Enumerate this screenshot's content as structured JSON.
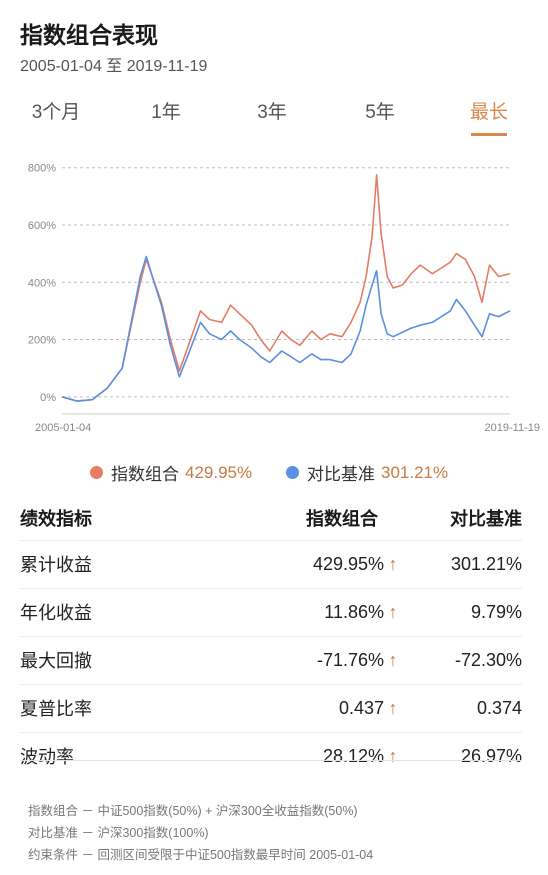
{
  "header": {
    "title": "指数组合表现",
    "date_range": "2005-01-04 至 2019-11-19"
  },
  "tabs": [
    {
      "label": "3个月",
      "active": false
    },
    {
      "label": "1年",
      "active": false
    },
    {
      "label": "3年",
      "active": false
    },
    {
      "label": "5年",
      "active": false
    },
    {
      "label": "最长",
      "active": true
    }
  ],
  "chart_data": {
    "type": "line",
    "x_start_label": "2005-01-04",
    "x_end_label": "2019-11-19",
    "ylim": [
      -60,
      820
    ],
    "yticks": [
      "800%",
      "600%",
      "400%",
      "200%",
      "0%"
    ],
    "ytick_values": [
      800,
      600,
      400,
      200,
      0
    ],
    "grid": true,
    "legend_placement": "bottom",
    "series": [
      {
        "name": "指数组合",
        "color": "#e57c66",
        "x": [
          2005.0,
          2005.5,
          2006.0,
          2006.5,
          2007.0,
          2007.3,
          2007.6,
          2007.8,
          2008.0,
          2008.3,
          2008.6,
          2008.9,
          2009.2,
          2009.6,
          2009.9,
          2010.3,
          2010.6,
          2010.9,
          2011.3,
          2011.6,
          2011.9,
          2012.3,
          2012.6,
          2012.9,
          2013.3,
          2013.6,
          2013.9,
          2014.3,
          2014.6,
          2014.9,
          2015.1,
          2015.3,
          2015.45,
          2015.6,
          2015.8,
          2016.0,
          2016.3,
          2016.6,
          2016.9,
          2017.3,
          2017.6,
          2017.9,
          2018.1,
          2018.4,
          2018.7,
          2018.95,
          2019.2,
          2019.5,
          2019.88
        ],
        "values": [
          0,
          -15,
          -10,
          30,
          100,
          250,
          400,
          480,
          420,
          330,
          200,
          90,
          180,
          300,
          270,
          260,
          320,
          290,
          250,
          200,
          160,
          230,
          200,
          180,
          230,
          200,
          220,
          210,
          260,
          330,
          420,
          560,
          775,
          570,
          420,
          380,
          390,
          430,
          460,
          430,
          450,
          470,
          500,
          480,
          420,
          330,
          460,
          420,
          430
        ]
      },
      {
        "name": "对比基准",
        "color": "#5b8fe0",
        "x": [
          2005.0,
          2005.5,
          2006.0,
          2006.5,
          2007.0,
          2007.3,
          2007.6,
          2007.8,
          2008.0,
          2008.3,
          2008.6,
          2008.9,
          2009.2,
          2009.6,
          2009.9,
          2010.3,
          2010.6,
          2010.9,
          2011.3,
          2011.6,
          2011.9,
          2012.3,
          2012.6,
          2012.9,
          2013.3,
          2013.6,
          2013.9,
          2014.3,
          2014.6,
          2014.9,
          2015.1,
          2015.3,
          2015.45,
          2015.6,
          2015.8,
          2016.0,
          2016.3,
          2016.6,
          2016.9,
          2017.3,
          2017.6,
          2017.9,
          2018.1,
          2018.4,
          2018.7,
          2018.95,
          2019.2,
          2019.5,
          2019.88
        ],
        "values": [
          0,
          -15,
          -10,
          30,
          100,
          260,
          420,
          490,
          420,
          320,
          180,
          70,
          150,
          260,
          220,
          200,
          230,
          200,
          170,
          140,
          120,
          160,
          140,
          120,
          150,
          130,
          130,
          120,
          150,
          230,
          320,
          390,
          440,
          290,
          220,
          210,
          225,
          240,
          250,
          260,
          280,
          300,
          340,
          300,
          250,
          210,
          290,
          280,
          300
        ]
      }
    ]
  },
  "legend": {
    "items": [
      {
        "label": "指数组合",
        "value": "429.95%",
        "color": "#e57c66"
      },
      {
        "label": "对比基准",
        "value": "301.21%",
        "color": "#5b8fe0"
      }
    ]
  },
  "metrics": {
    "headers": [
      "绩效指标",
      "指数组合",
      "对比基准"
    ],
    "rows": [
      {
        "name": "累计收益",
        "portfolio": "429.95%",
        "arrow": "↑",
        "benchmark": "301.21%"
      },
      {
        "name": "年化收益",
        "portfolio": "11.86%",
        "arrow": "↑",
        "benchmark": "9.79%"
      },
      {
        "name": "最大回撤",
        "portfolio": "-71.76%",
        "arrow": "↑",
        "benchmark": "-72.30%"
      },
      {
        "name": "夏普比率",
        "portfolio": "0.437",
        "arrow": "↑",
        "benchmark": "0.374"
      },
      {
        "name": "波动率",
        "portfolio": "28.12%",
        "arrow": "↑",
        "benchmark": "26.97%"
      }
    ]
  },
  "notes": [
    "指数组合 － 中证500指数(50%) + 沪深300全收益指数(50%)",
    "对比基准 － 沪深300指数(100%)",
    "约束条件 － 回测区间受限于中证500指数最早时间 2005-01-04"
  ]
}
